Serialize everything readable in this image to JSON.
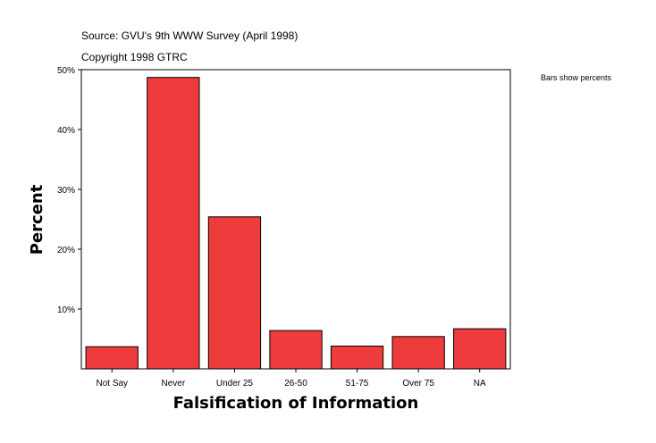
{
  "header": {
    "source": "Source: GVU's 9th WWW Survey (April 1998)",
    "copyright": "Copyright 1998 GTRC"
  },
  "legend_note": "Bars show percents",
  "chart_data": {
    "type": "bar",
    "categories": [
      "Not Say",
      "Never",
      "Under 25",
      "26-50",
      "51-75",
      "Over 75",
      "NA"
    ],
    "values": [
      3.7,
      48.7,
      25.4,
      6.4,
      3.8,
      5.4,
      6.7
    ],
    "xlabel": "Falsification of Information",
    "ylabel": "Percent",
    "ylim": [
      0,
      50
    ],
    "yticks": [
      10,
      20,
      30,
      40,
      50
    ],
    "ytick_labels": [
      "10%",
      "20%",
      "30%",
      "40%",
      "50%"
    ],
    "bar_color": "#EE3B3B",
    "grid": false
  }
}
